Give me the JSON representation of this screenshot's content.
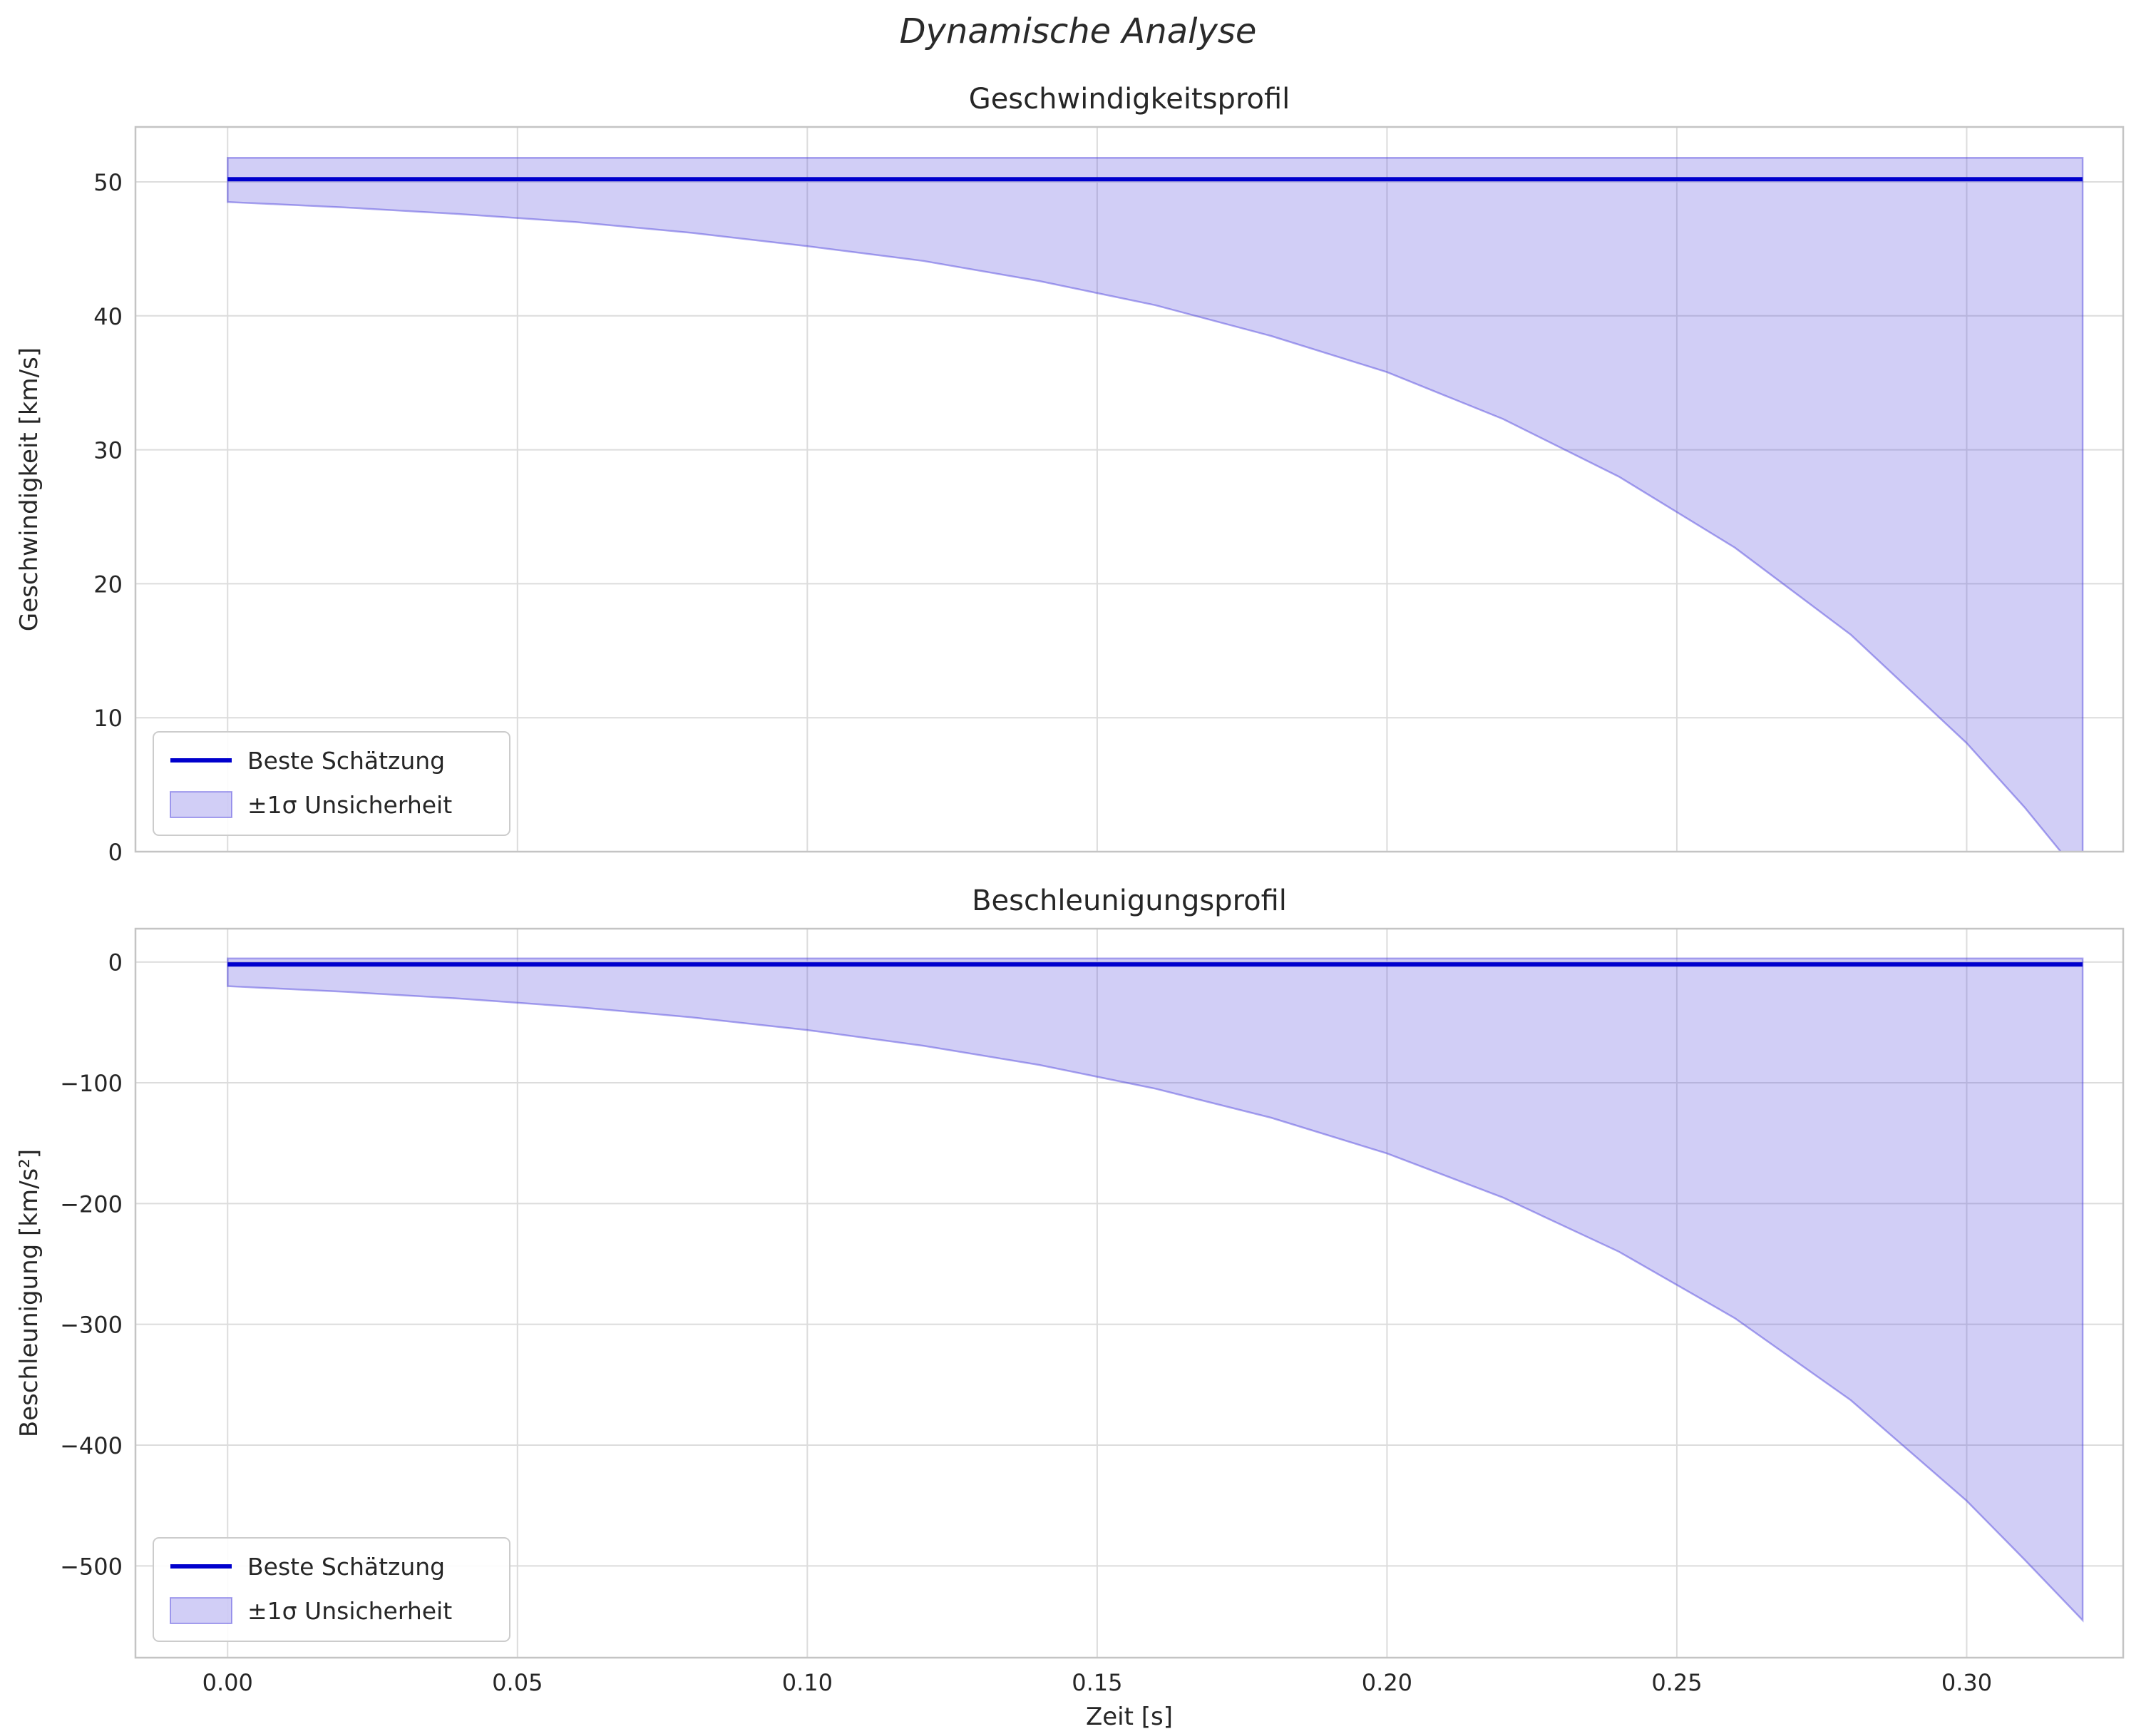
{
  "page_title": "Dynamische Analyse",
  "xlabel": "Zeit [s]",
  "legend": {
    "line_label": "Beste Schätzung",
    "band_label": "±1σ Unsicherheit"
  },
  "colors": {
    "line": "#0000cd",
    "band_fill": "rgba(70,60,220,0.25)",
    "band_edge": "rgba(70,60,220,0.45)",
    "grid": "#dcdcdc",
    "frame": "#c4c4c4",
    "text": "#262626"
  },
  "chart_data": [
    {
      "id": "velocity",
      "type": "area",
      "title": "Geschwindigkeitsprofil",
      "ylabel": "Geschwindigkeit [km/s]",
      "xlim": [
        -0.0159,
        0.327
      ],
      "ylim": [
        0,
        54.1
      ],
      "xticks": [
        0.0,
        0.05,
        0.1,
        0.15,
        0.2,
        0.25,
        0.3
      ],
      "xtick_labels": [
        "0.00",
        "0.05",
        "0.10",
        "0.15",
        "0.20",
        "0.25",
        "0.30"
      ],
      "yticks": [
        0,
        10,
        20,
        30,
        40,
        50
      ],
      "ytick_labels": [
        "0",
        "10",
        "20",
        "30",
        "40",
        "50"
      ],
      "x": [
        0.0,
        0.02,
        0.04,
        0.06,
        0.08,
        0.1,
        0.12,
        0.14,
        0.16,
        0.18,
        0.2,
        0.22,
        0.24,
        0.26,
        0.28,
        0.3,
        0.31,
        0.32
      ],
      "best": 50.2,
      "upper": 51.8,
      "lower": [
        48.5,
        48.1,
        47.6,
        47.0,
        46.2,
        45.2,
        44.1,
        42.6,
        40.8,
        38.5,
        35.8,
        32.3,
        28.0,
        22.7,
        16.2,
        8.1,
        3.3,
        -2.0
      ]
    },
    {
      "id": "acceleration",
      "type": "area",
      "title": "Beschleunigungsprofil",
      "ylabel": "Beschleunigung [km/s²]",
      "xlim": [
        -0.0159,
        0.327
      ],
      "ylim": [
        -576,
        27.6
      ],
      "xticks": [
        0.0,
        0.05,
        0.1,
        0.15,
        0.2,
        0.25,
        0.3
      ],
      "xtick_labels": [
        "0.00",
        "0.05",
        "0.10",
        "0.15",
        "0.20",
        "0.25",
        "0.30"
      ],
      "yticks": [
        0,
        -100,
        -200,
        -300,
        -400,
        -500
      ],
      "ytick_labels": [
        "0",
        "−100",
        "−200",
        "−300",
        "−400",
        "−500"
      ],
      "x": [
        0.0,
        0.02,
        0.04,
        0.06,
        0.08,
        0.1,
        0.12,
        0.14,
        0.16,
        0.18,
        0.2,
        0.22,
        0.24,
        0.26,
        0.28,
        0.3,
        0.31,
        0.32
      ],
      "best": -2,
      "upper": 3,
      "lower": [
        -20,
        -24.6,
        -30.3,
        -37.2,
        -45.8,
        -56.3,
        -69.3,
        -85.2,
        -104.8,
        -128.9,
        -158.5,
        -195.0,
        -239.8,
        -294.9,
        -362.8,
        -446.2,
        -494.9,
        -545.0
      ]
    }
  ]
}
